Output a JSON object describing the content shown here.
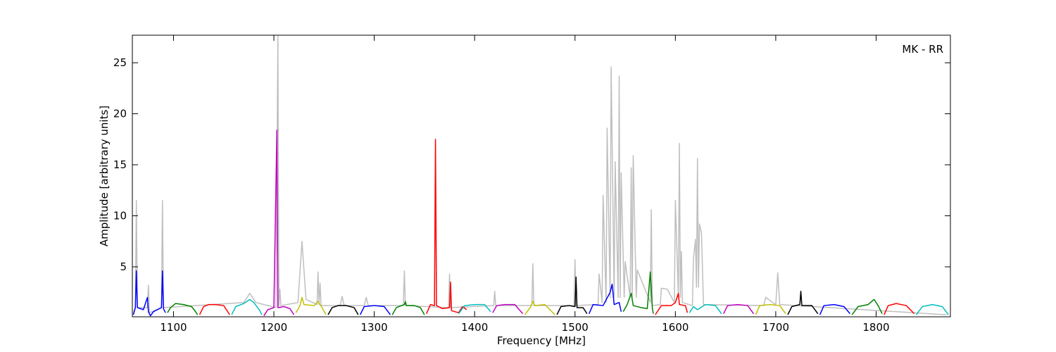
{
  "chart_data": {
    "type": "line",
    "annotation": "MK - RR",
    "xlabel": "Frequency [MHz]",
    "ylabel": "Amplitude [arbitrary units]",
    "xlim": [
      1059,
      1874
    ],
    "ylim": [
      0.1,
      27.7
    ],
    "xticks": [
      1100,
      1200,
      1300,
      1400,
      1500,
      1600,
      1700,
      1800
    ],
    "yticks": [
      5,
      10,
      15,
      20,
      25
    ],
    "series": [
      {
        "color": "#bfbfbf",
        "x": [
          1060,
          1062,
          1063,
          1064,
          1074,
          1075,
          1076,
          1088,
          1089,
          1090,
          1170,
          1176,
          1182,
          1202,
          1204,
          1205,
          1206,
          1207,
          1224,
          1228,
          1232,
          1243,
          1244,
          1245,
          1246,
          1247,
          1266,
          1268,
          1270,
          1290,
          1292,
          1294,
          1329,
          1330,
          1331,
          1374,
          1375,
          1376,
          1419,
          1420,
          1421,
          1457,
          1458,
          1459,
          1499,
          1500,
          1501,
          1523,
          1524,
          1527,
          1528,
          1531,
          1532,
          1535,
          1536,
          1539,
          1540,
          1543,
          1544,
          1545,
          1546,
          1549,
          1550,
          1555,
          1556,
          1557,
          1558,
          1561,
          1562,
          1575,
          1576,
          1577,
          1585,
          1586,
          1592,
          1599,
          1600,
          1603,
          1604,
          1605,
          1606,
          1607,
          1617,
          1618,
          1620,
          1621,
          1622,
          1623,
          1624,
          1626,
          1628,
          1688,
          1690,
          1700,
          1702,
          1704,
          1870
        ],
        "values": [
          0.5,
          1.0,
          11.5,
          1.0,
          1.0,
          3.2,
          0.5,
          1.0,
          11.5,
          1.0,
          1.5,
          2.4,
          1.5,
          1.0,
          27.7,
          1.2,
          2.8,
          1.2,
          1.5,
          7.5,
          1.8,
          1.3,
          4.5,
          1.3,
          3.4,
          1.2,
          1.2,
          2.1,
          1.2,
          1.2,
          2.0,
          1.2,
          1.2,
          4.6,
          1.2,
          1.0,
          4.3,
          1.0,
          1.2,
          2.6,
          1.2,
          1.2,
          5.3,
          1.2,
          1.2,
          5.7,
          1.2,
          1.3,
          4.3,
          1.5,
          12.0,
          1.5,
          18.6,
          2.0,
          24.6,
          2.0,
          15.3,
          2.0,
          23.7,
          2.0,
          14.2,
          2.0,
          5.5,
          2.0,
          14.7,
          2.0,
          15.9,
          2.0,
          4.7,
          1.5,
          10.6,
          1.2,
          1.3,
          2.9,
          2.8,
          1.5,
          11.5,
          2.0,
          17.1,
          2.0,
          6.5,
          1.5,
          1.2,
          5.8,
          7.7,
          3.0,
          15.6,
          3.0,
          9.2,
          8.3,
          1.3,
          1.2,
          2.0,
          1.3,
          4.4,
          1.3,
          0.3
        ]
      },
      {
        "color": "#0000ff",
        "x": [
          1060,
          1062,
          1063,
          1064,
          1070,
          1074,
          1075,
          1077,
          1080,
          1088,
          1089,
          1090,
          1092
        ],
        "values": [
          0.3,
          1.0,
          4.6,
          1.0,
          0.8,
          2.0,
          0.6,
          0.2,
          0.6,
          1.0,
          4.6,
          0.9,
          0.5
        ]
      },
      {
        "color": "#008000",
        "x": [
          1094,
          1097,
          1102,
          1110,
          1118,
          1122,
          1124
        ],
        "values": [
          0.5,
          1.0,
          1.4,
          1.3,
          1.1,
          0.6,
          0.3
        ]
      },
      {
        "color": "#ff0000",
        "x": [
          1126,
          1130,
          1135,
          1142,
          1150,
          1154,
          1156
        ],
        "values": [
          0.3,
          1.1,
          1.3,
          1.3,
          1.2,
          0.6,
          0.3
        ]
      },
      {
        "color": "#00bfbf",
        "x": [
          1158,
          1162,
          1170,
          1176,
          1180,
          1186,
          1188
        ],
        "values": [
          0.3,
          1.1,
          1.4,
          1.8,
          1.5,
          0.7,
          0.3
        ]
      },
      {
        "color": "#bf00bf",
        "x": [
          1190,
          1194,
          1200,
          1203,
          1204,
          1210,
          1216,
          1220
        ],
        "values": [
          0.2,
          0.8,
          1.0,
          18.4,
          1.0,
          1.1,
          0.9,
          0.3
        ]
      },
      {
        "color": "#bfbf00",
        "x": [
          1222,
          1226,
          1228,
          1230,
          1240,
          1244,
          1248,
          1252
        ],
        "values": [
          0.5,
          1.2,
          2.0,
          1.3,
          1.2,
          1.6,
          1.0,
          0.3
        ]
      },
      {
        "color": "#000000",
        "x": [
          1254,
          1258,
          1264,
          1272,
          1280,
          1284
        ],
        "values": [
          0.3,
          1.0,
          1.2,
          1.2,
          1.0,
          0.3
        ]
      },
      {
        "color": "#0000ff",
        "x": [
          1286,
          1290,
          1300,
          1310,
          1316
        ],
        "values": [
          0.3,
          1.1,
          1.2,
          1.1,
          0.3
        ]
      },
      {
        "color": "#008000",
        "x": [
          1318,
          1322,
          1330,
          1331,
          1332,
          1340,
          1346,
          1350
        ],
        "values": [
          0.3,
          1.0,
          1.3,
          1.6,
          1.2,
          1.2,
          1.0,
          0.3
        ]
      },
      {
        "color": "#ff0000",
        "x": [
          1352,
          1356,
          1360,
          1361,
          1362,
          1368,
          1375,
          1376,
          1377,
          1384,
          1388,
          1392
        ],
        "values": [
          0.4,
          1.3,
          1.2,
          17.5,
          1.2,
          0.9,
          1.0,
          3.5,
          0.7,
          0.5,
          1.1,
          0.8
        ]
      },
      {
        "color": "#00bfbf",
        "x": [
          1384,
          1390,
          1400,
          1410,
          1416
        ],
        "values": [
          0.4,
          1.2,
          1.3,
          1.3,
          0.6
        ]
      },
      {
        "color": "#bf00bf",
        "x": [
          1418,
          1422,
          1430,
          1440,
          1448
        ],
        "values": [
          0.5,
          1.2,
          1.3,
          1.3,
          0.4
        ]
      },
      {
        "color": "#bfbf00",
        "x": [
          1450,
          1456,
          1458,
          1460,
          1470,
          1480
        ],
        "values": [
          0.3,
          1.1,
          1.6,
          1.2,
          1.3,
          0.3
        ]
      },
      {
        "color": "#000000",
        "x": [
          1482,
          1486,
          1494,
          1500,
          1501,
          1502,
          1508,
          1512
        ],
        "values": [
          0.3,
          1.1,
          1.2,
          1.1,
          4.0,
          1.0,
          1.0,
          0.4
        ]
      },
      {
        "color": "#0000ff",
        "x": [
          1514,
          1518,
          1528,
          1535,
          1537,
          1539,
          1544,
          1546
        ],
        "values": [
          0.4,
          1.3,
          1.2,
          2.5,
          3.3,
          1.3,
          1.5,
          0.6
        ]
      },
      {
        "color": "#008000",
        "x": [
          1548,
          1552,
          1556,
          1558,
          1566,
          1572,
          1575,
          1577,
          1578
        ],
        "values": [
          0.6,
          1.3,
          2.4,
          1.2,
          1.0,
          0.9,
          4.5,
          1.0,
          0.4
        ]
      },
      {
        "color": "#ff0000",
        "x": [
          1580,
          1586,
          1596,
          1600,
          1603,
          1604,
          1610,
          1612
        ],
        "values": [
          0.3,
          1.2,
          1.2,
          1.5,
          2.4,
          1.3,
          1.2,
          0.5
        ]
      },
      {
        "color": "#00bfbf",
        "x": [
          1614,
          1618,
          1622,
          1630,
          1640,
          1646
        ],
        "values": [
          0.5,
          1.1,
          0.8,
          1.3,
          1.2,
          0.4
        ]
      },
      {
        "color": "#bf00bf",
        "x": [
          1648,
          1652,
          1662,
          1672,
          1678
        ],
        "values": [
          0.4,
          1.2,
          1.3,
          1.2,
          0.4
        ]
      },
      {
        "color": "#bfbf00",
        "x": [
          1680,
          1684,
          1694,
          1704,
          1710
        ],
        "values": [
          0.3,
          1.2,
          1.3,
          1.2,
          0.4
        ]
      },
      {
        "color": "#000000",
        "x": [
          1712,
          1716,
          1724,
          1725,
          1726,
          1736,
          1742
        ],
        "values": [
          0.3,
          1.1,
          1.3,
          2.6,
          1.2,
          1.2,
          0.4
        ]
      },
      {
        "color": "#0000ff",
        "x": [
          1744,
          1748,
          1758,
          1768,
          1774
        ],
        "values": [
          0.3,
          1.2,
          1.3,
          1.1,
          0.4
        ]
      },
      {
        "color": "#008000",
        "x": [
          1776,
          1782,
          1792,
          1798,
          1802,
          1806
        ],
        "values": [
          0.3,
          1.1,
          1.3,
          1.8,
          1.2,
          0.4
        ]
      },
      {
        "color": "#ff0000",
        "x": [
          1808,
          1812,
          1820,
          1830,
          1838
        ],
        "values": [
          0.3,
          1.2,
          1.4,
          1.2,
          0.4
        ]
      },
      {
        "color": "#00bfbf",
        "x": [
          1840,
          1846,
          1856,
          1866,
          1872
        ],
        "values": [
          0.3,
          1.1,
          1.3,
          1.1,
          0.3
        ]
      }
    ]
  }
}
